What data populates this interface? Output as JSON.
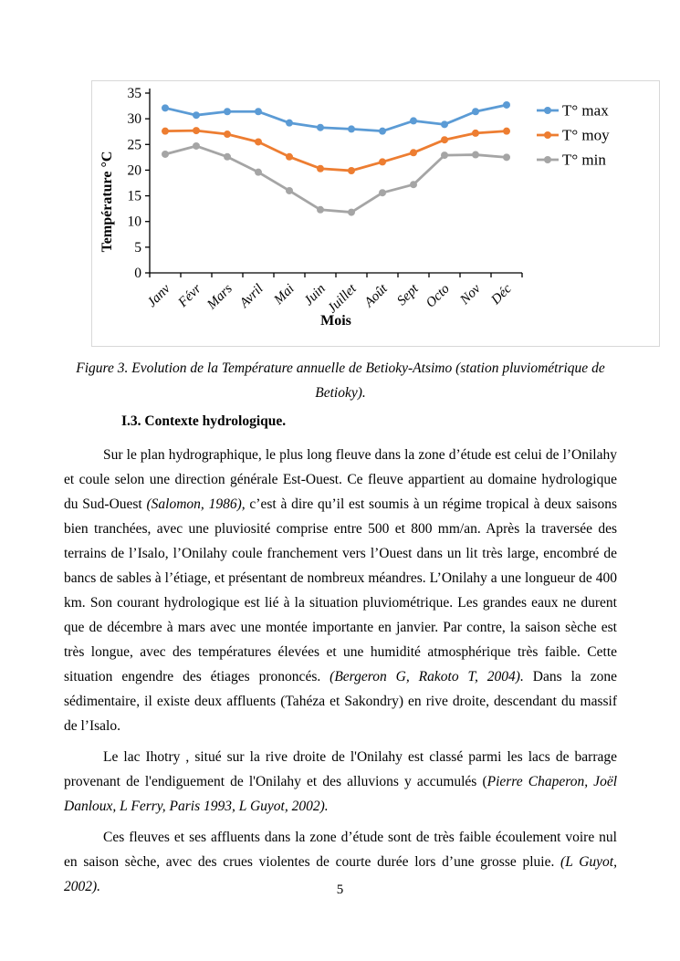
{
  "page": {
    "number": "5"
  },
  "figure": {
    "caption": "Figure 3. Evolution de la Température annuelle de Betioky-Atsimo (station pluviométrique de Betioky)."
  },
  "section": {
    "heading": "I.3. Contexte hydrologique."
  },
  "body": {
    "paragraphs": [
      {
        "segments": [
          {
            "text": "Sur le plan hydrographique, le plus long fleuve dans la zone d’étude est celui de l’Onilahy et coule selon une direction générale Est-Ouest. Ce fleuve appartient au domaine hydrologique du Sud-Ouest ",
            "italic": false
          },
          {
            "text": "(Salomon, 1986),",
            "italic": true
          },
          {
            "text": " c’est à dire qu’il est soumis à un régime tropical à deux saisons bien tranchées, avec une pluviosité comprise entre 500 et 800 mm/an. Après la traversée des terrains de l’Isalo, l’Onilahy coule franchement vers l’Ouest dans un lit très large, encombré de bancs de sables à l’étiage, et présentant de nombreux méandres. L’Onilahy a une longueur de 400 km. Son courant hydrologique est lié à la situation pluviométrique. Les grandes eaux ne durent que de décembre à mars avec une montée importante en janvier. Par contre, la saison sèche est très longue, avec des températures élevées et une humidité atmosphérique très faible. Cette situation engendre des étiages prononcés. ",
            "italic": false
          },
          {
            "text": "(Bergeron G, Rakoto T, 2004).",
            "italic": true
          },
          {
            "text": " Dans la zone sédimentaire, il existe deux affluents (Tahéza et Sakondry) en rive droite, descendant du massif de l’Isalo.",
            "italic": false
          }
        ]
      },
      {
        "segments": [
          {
            "text": "Le lac Ihotry , situé sur la rive droite de l'Onilahy est classé parmi les lacs de barrage provenant de l'endiguement de l'Onilahy et des alluvions y accumulés (",
            "italic": false
          },
          {
            "text": "Pierre Chaperon, Joël Danloux, L Ferry, Paris 1993, L Guyot, 2002).",
            "italic": true
          }
        ]
      },
      {
        "segments": [
          {
            "text": "Ces fleuves et ses affluents dans la zone d’étude sont de très faible écoulement voire nul en saison sèche, avec des crues violentes de courte durée lors d’une grosse pluie. ",
            "italic": false
          },
          {
            "text": "(L Guyot, 2002).",
            "italic": true
          }
        ]
      }
    ]
  },
  "chart_data": {
    "type": "line",
    "title": "",
    "xlabel": "Mois",
    "ylabel": "Température °C",
    "categories": [
      "Janv",
      "Févr",
      "Mars",
      "Avril",
      "Mai",
      "Juin",
      "Juillet",
      "Août",
      "Sept",
      "Octo",
      "Nov",
      "Déc"
    ],
    "series": [
      {
        "name": "T° max",
        "color": "#5B9BD5",
        "values": [
          32.1,
          30.7,
          31.4,
          31.4,
          29.2,
          28.3,
          28.0,
          27.6,
          29.6,
          28.9,
          31.4,
          32.7
        ]
      },
      {
        "name": "T° moy",
        "color": "#ED7D31",
        "values": [
          27.6,
          27.7,
          27.0,
          25.5,
          22.6,
          20.3,
          19.9,
          21.6,
          23.4,
          25.9,
          27.2,
          27.6
        ]
      },
      {
        "name": "T° min",
        "color": "#A5A5A5",
        "values": [
          23.1,
          24.7,
          22.6,
          19.6,
          16.0,
          12.3,
          11.8,
          15.6,
          17.2,
          22.9,
          23.0,
          22.5
        ]
      }
    ],
    "ylim": [
      0,
      35
    ],
    "ytick_step": 5,
    "grid": false,
    "legend_position": "right",
    "marker": "circle"
  }
}
